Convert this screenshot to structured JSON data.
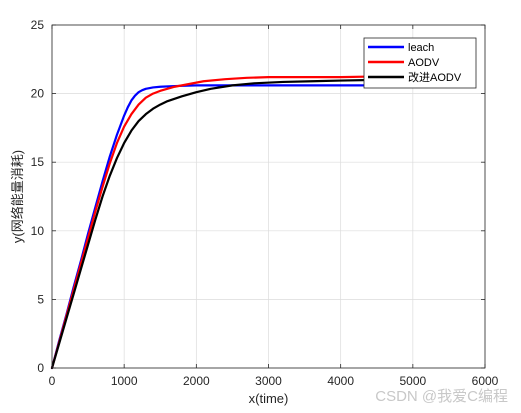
{
  "chart_data": {
    "type": "line",
    "xlabel": "x(time)",
    "ylabel": "y(网络能量消耗)",
    "xlim": [
      0,
      6000
    ],
    "ylim": [
      0,
      25
    ],
    "xticks": [
      0,
      1000,
      2000,
      3000,
      4000,
      5000,
      6000
    ],
    "yticks": [
      0,
      5,
      10,
      15,
      20,
      25
    ],
    "grid": true,
    "legend_position": "top-right",
    "series": [
      {
        "name": "leach",
        "color": "#0000ff",
        "x": [
          0,
          100,
          200,
          300,
          400,
          500,
          600,
          700,
          800,
          900,
          1000,
          1050,
          1100,
          1150,
          1200,
          1250,
          1300,
          1400,
          1500,
          1700,
          2000,
          2500,
          3000,
          3500,
          4000,
          4500,
          4800
        ],
        "y": [
          0,
          2.0,
          3.9,
          5.9,
          7.8,
          9.8,
          11.7,
          13.6,
          15.4,
          17.0,
          18.4,
          19.0,
          19.5,
          19.85,
          20.1,
          20.25,
          20.35,
          20.45,
          20.5,
          20.55,
          20.6,
          20.6,
          20.6,
          20.6,
          20.6,
          20.6,
          20.6
        ]
      },
      {
        "name": "AODV",
        "color": "#ff0000",
        "x": [
          0,
          100,
          200,
          300,
          400,
          500,
          600,
          700,
          800,
          900,
          1000,
          1100,
          1200,
          1300,
          1400,
          1500,
          1700,
          1900,
          2100,
          2400,
          2700,
          3000,
          3500,
          4000,
          4500,
          4800
        ],
        "y": [
          0,
          1.9,
          3.8,
          5.7,
          7.6,
          9.5,
          11.4,
          13.2,
          14.9,
          16.4,
          17.6,
          18.5,
          19.2,
          19.7,
          20.0,
          20.2,
          20.5,
          20.7,
          20.9,
          21.05,
          21.15,
          21.2,
          21.2,
          21.2,
          21.25,
          21.3
        ]
      },
      {
        "name": "改进AODV",
        "color": "#000000",
        "x": [
          0,
          100,
          200,
          300,
          400,
          500,
          600,
          700,
          800,
          900,
          1000,
          1100,
          1200,
          1300,
          1400,
          1500,
          1600,
          1800,
          2000,
          2200,
          2500,
          2800,
          3200,
          3600,
          4000,
          4500,
          4800
        ],
        "y": [
          0,
          1.8,
          3.6,
          5.4,
          7.2,
          9.0,
          10.8,
          12.5,
          14.0,
          15.3,
          16.4,
          17.3,
          18.0,
          18.5,
          18.9,
          19.2,
          19.45,
          19.8,
          20.1,
          20.35,
          20.6,
          20.75,
          20.85,
          20.9,
          20.95,
          21.0,
          21.05
        ]
      }
    ]
  },
  "watermark": "CSDN @我爱C编程"
}
